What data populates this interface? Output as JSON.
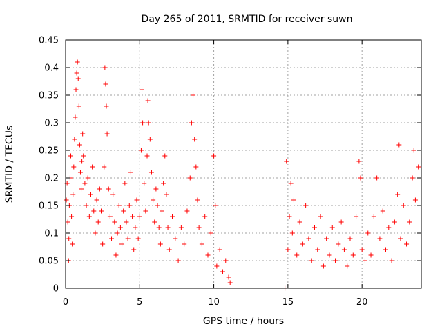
{
  "chart_data": {
    "type": "scatter",
    "title": "Day 265 of 2011, SRMTID for receiver suwn",
    "xlabel": "GPS time / hours",
    "ylabel": "SRMTID / TECUs",
    "xlim": [
      0,
      24
    ],
    "ylim": [
      0,
      0.45
    ],
    "xticks": [
      0,
      5,
      10,
      15,
      20
    ],
    "yticks": [
      0,
      0.05,
      0.1,
      0.15,
      0.2,
      0.25,
      0.3,
      0.35,
      0.4,
      0.45
    ],
    "xtick_labels": [
      "0",
      "5",
      "10",
      "15",
      "20"
    ],
    "ytick_labels": [
      "0",
      "0.05",
      "0.1",
      "0.15",
      "0.2",
      "0.25",
      "0.3",
      "0.35",
      "0.4",
      "0.45"
    ],
    "grid": true,
    "marker": "+",
    "series": [
      {
        "name": "SRMTID",
        "color": "#ff0000",
        "points": [
          [
            0.05,
            0.16
          ],
          [
            0.1,
            0.19
          ],
          [
            0.15,
            0.12
          ],
          [
            0.2,
            0.05
          ],
          [
            0.22,
            0.09
          ],
          [
            0.25,
            0.15
          ],
          [
            0.3,
            0.2
          ],
          [
            0.35,
            0.24
          ],
          [
            0.4,
            0.13
          ],
          [
            0.45,
            0.08
          ],
          [
            0.5,
            0.17
          ],
          [
            0.55,
            0.22
          ],
          [
            0.6,
            0.27
          ],
          [
            0.65,
            0.31
          ],
          [
            0.7,
            0.36
          ],
          [
            0.75,
            0.39
          ],
          [
            0.8,
            0.41
          ],
          [
            0.85,
            0.38
          ],
          [
            0.9,
            0.33
          ],
          [
            0.95,
            0.26
          ],
          [
            1.0,
            0.21
          ],
          [
            1.05,
            0.18
          ],
          [
            1.1,
            0.23
          ],
          [
            1.15,
            0.28
          ],
          [
            1.2,
            0.24
          ],
          [
            1.3,
            0.19
          ],
          [
            1.4,
            0.15
          ],
          [
            1.5,
            0.2
          ],
          [
            1.6,
            0.13
          ],
          [
            1.7,
            0.17
          ],
          [
            1.8,
            0.22
          ],
          [
            1.9,
            0.14
          ],
          [
            2.0,
            0.1
          ],
          [
            2.1,
            0.16
          ],
          [
            2.2,
            0.12
          ],
          [
            2.3,
            0.18
          ],
          [
            2.4,
            0.14
          ],
          [
            2.5,
            0.08
          ],
          [
            2.6,
            0.22
          ],
          [
            2.65,
            0.4
          ],
          [
            2.7,
            0.37
          ],
          [
            2.75,
            0.33
          ],
          [
            2.8,
            0.28
          ],
          [
            2.9,
            0.18
          ],
          [
            3.0,
            0.13
          ],
          [
            3.1,
            0.09
          ],
          [
            3.2,
            0.17
          ],
          [
            3.3,
            0.12
          ],
          [
            3.4,
            0.06
          ],
          [
            3.5,
            0.1
          ],
          [
            3.6,
            0.15
          ],
          [
            3.7,
            0.11
          ],
          [
            3.8,
            0.08
          ],
          [
            3.9,
            0.14
          ],
          [
            4.0,
            0.19
          ],
          [
            4.1,
            0.12
          ],
          [
            4.2,
            0.09
          ],
          [
            4.3,
            0.15
          ],
          [
            4.4,
            0.21
          ],
          [
            4.5,
            0.13
          ],
          [
            4.6,
            0.07
          ],
          [
            4.7,
            0.11
          ],
          [
            4.8,
            0.16
          ],
          [
            4.9,
            0.09
          ],
          [
            5.0,
            0.13
          ],
          [
            5.1,
            0.25
          ],
          [
            5.15,
            0.36
          ],
          [
            5.2,
            0.3
          ],
          [
            5.3,
            0.19
          ],
          [
            5.4,
            0.14
          ],
          [
            5.5,
            0.24
          ],
          [
            5.55,
            0.34
          ],
          [
            5.6,
            0.3
          ],
          [
            5.7,
            0.27
          ],
          [
            5.8,
            0.21
          ],
          [
            5.9,
            0.16
          ],
          [
            6.0,
            0.12
          ],
          [
            6.1,
            0.18
          ],
          [
            6.2,
            0.15
          ],
          [
            6.3,
            0.11
          ],
          [
            6.4,
            0.08
          ],
          [
            6.5,
            0.14
          ],
          [
            6.6,
            0.19
          ],
          [
            6.7,
            0.24
          ],
          [
            6.8,
            0.17
          ],
          [
            6.9,
            0.11
          ],
          [
            7.0,
            0.07
          ],
          [
            7.2,
            0.13
          ],
          [
            7.4,
            0.09
          ],
          [
            7.6,
            0.05
          ],
          [
            7.8,
            0.11
          ],
          [
            8.0,
            0.08
          ],
          [
            8.2,
            0.14
          ],
          [
            8.4,
            0.2
          ],
          [
            8.5,
            0.3
          ],
          [
            8.6,
            0.35
          ],
          [
            8.7,
            0.27
          ],
          [
            8.8,
            0.22
          ],
          [
            8.9,
            0.16
          ],
          [
            9.0,
            0.11
          ],
          [
            9.2,
            0.08
          ],
          [
            9.4,
            0.13
          ],
          [
            9.6,
            0.06
          ],
          [
            9.8,
            0.1
          ],
          [
            10.0,
            0.24
          ],
          [
            10.1,
            0.15
          ],
          [
            10.2,
            0.04
          ],
          [
            10.4,
            0.07
          ],
          [
            10.6,
            0.03
          ],
          [
            10.8,
            0.05
          ],
          [
            11.0,
            0.02
          ],
          [
            11.1,
            0.01
          ],
          [
            14.8,
            0.0
          ],
          [
            14.9,
            0.23
          ],
          [
            15.0,
            0.07
          ],
          [
            15.1,
            0.13
          ],
          [
            15.2,
            0.19
          ],
          [
            15.3,
            0.1
          ],
          [
            15.4,
            0.16
          ],
          [
            15.6,
            0.06
          ],
          [
            15.8,
            0.12
          ],
          [
            16.0,
            0.08
          ],
          [
            16.2,
            0.15
          ],
          [
            16.4,
            0.09
          ],
          [
            16.6,
            0.05
          ],
          [
            16.8,
            0.11
          ],
          [
            17.0,
            0.07
          ],
          [
            17.2,
            0.13
          ],
          [
            17.4,
            0.04
          ],
          [
            17.6,
            0.09
          ],
          [
            17.8,
            0.06
          ],
          [
            18.0,
            0.11
          ],
          [
            18.2,
            0.05
          ],
          [
            18.4,
            0.08
          ],
          [
            18.6,
            0.12
          ],
          [
            18.8,
            0.07
          ],
          [
            19.0,
            0.04
          ],
          [
            19.2,
            0.09
          ],
          [
            19.4,
            0.06
          ],
          [
            19.6,
            0.13
          ],
          [
            19.8,
            0.23
          ],
          [
            19.9,
            0.2
          ],
          [
            20.0,
            0.07
          ],
          [
            20.2,
            0.05
          ],
          [
            20.4,
            0.1
          ],
          [
            20.6,
            0.06
          ],
          [
            20.8,
            0.13
          ],
          [
            21.0,
            0.2
          ],
          [
            21.2,
            0.09
          ],
          [
            21.4,
            0.14
          ],
          [
            21.6,
            0.07
          ],
          [
            21.8,
            0.11
          ],
          [
            22.0,
            0.05
          ],
          [
            22.2,
            0.12
          ],
          [
            22.4,
            0.17
          ],
          [
            22.5,
            0.26
          ],
          [
            22.6,
            0.09
          ],
          [
            22.8,
            0.15
          ],
          [
            23.0,
            0.08
          ],
          [
            23.2,
            0.12
          ],
          [
            23.4,
            0.2
          ],
          [
            23.5,
            0.25
          ],
          [
            23.6,
            0.16
          ],
          [
            23.8,
            0.22
          ]
        ]
      }
    ]
  }
}
